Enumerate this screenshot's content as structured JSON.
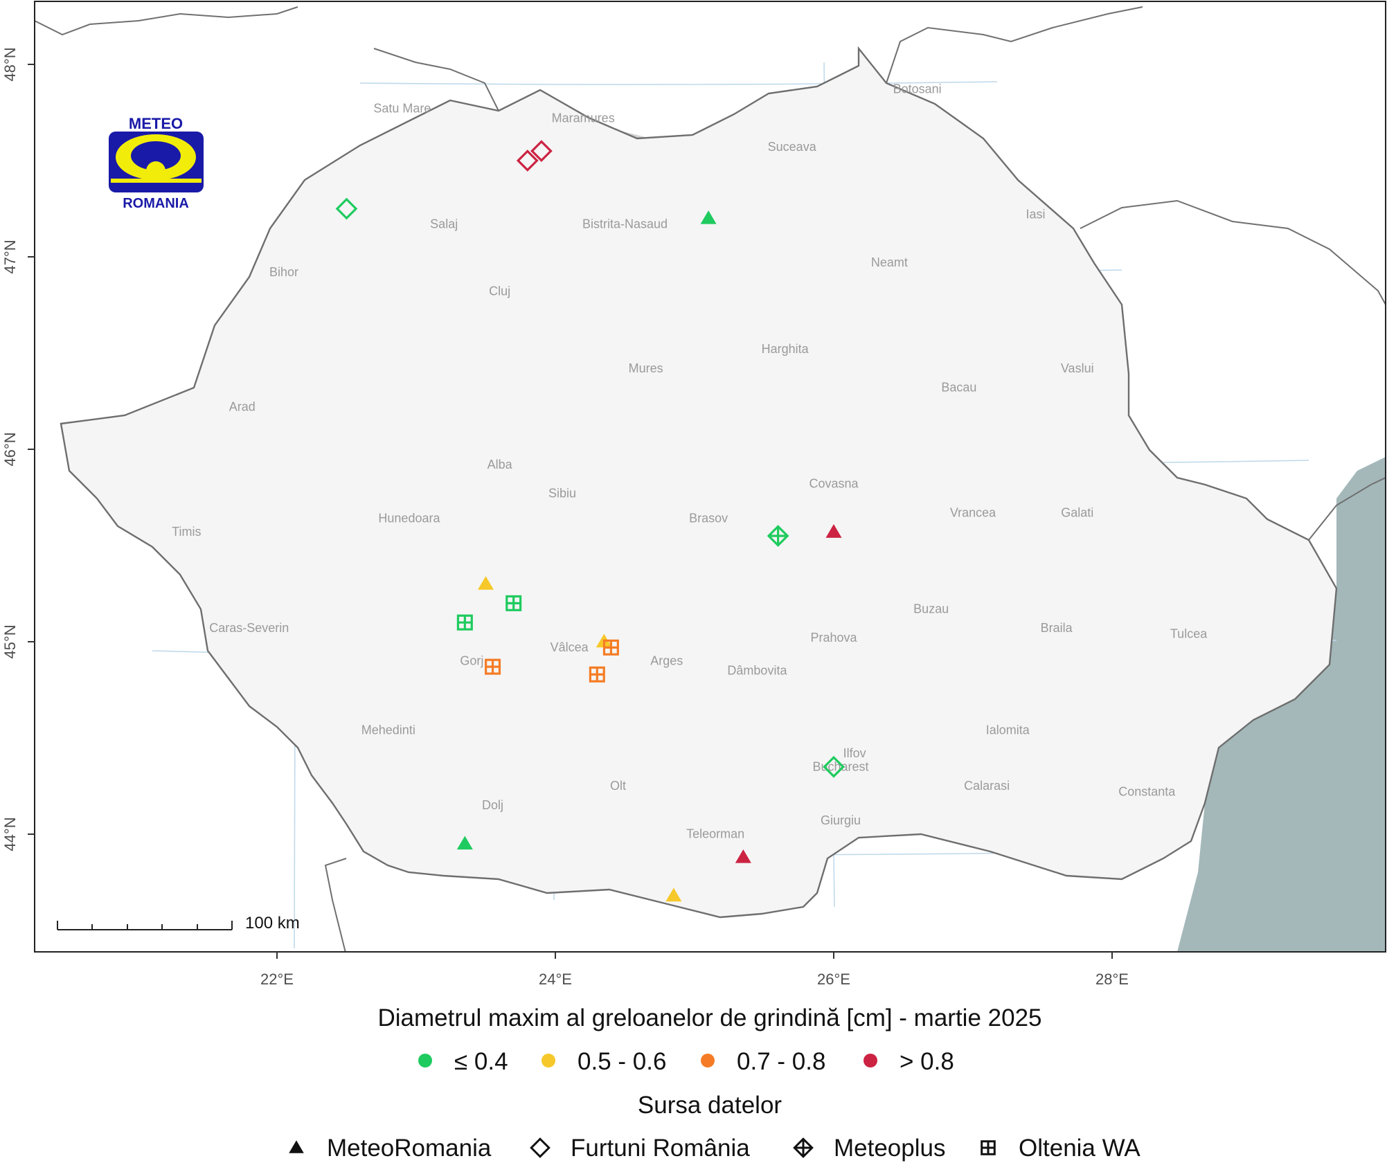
{
  "map": {
    "axes": {
      "x_ticks": [
        "22°E",
        "24°E",
        "26°E",
        "28°E"
      ],
      "y_ticks": [
        "44°N",
        "45°N",
        "46°N",
        "47°N",
        "48°N"
      ]
    },
    "colors": {
      "land": "#f5f5f5",
      "relief": "#d2d2d2",
      "sea": "#a4b8ba",
      "border": "#707070",
      "graticule": "#bcd8ea"
    },
    "logo": {
      "top": "METEO",
      "bottom": "ROMANIA"
    },
    "scale_bar": {
      "label": "100 km"
    },
    "counties": [
      {
        "name": "Satu Mare",
        "lon": 22.9,
        "lat": 47.75
      },
      {
        "name": "Maramures",
        "lon": 24.2,
        "lat": 47.7
      },
      {
        "name": "Botosani",
        "lon": 26.6,
        "lat": 47.85
      },
      {
        "name": "Suceava",
        "lon": 25.7,
        "lat": 47.55
      },
      {
        "name": "Salaj",
        "lon": 23.2,
        "lat": 47.15
      },
      {
        "name": "Bistrita-Nasaud",
        "lon": 24.5,
        "lat": 47.15
      },
      {
        "name": "Iasi",
        "lon": 27.45,
        "lat": 47.2
      },
      {
        "name": "Bihor",
        "lon": 22.05,
        "lat": 46.9
      },
      {
        "name": "Neamt",
        "lon": 26.4,
        "lat": 46.95
      },
      {
        "name": "Cluj",
        "lon": 23.6,
        "lat": 46.8
      },
      {
        "name": "Harghita",
        "lon": 25.65,
        "lat": 46.5
      },
      {
        "name": "Mures",
        "lon": 24.65,
        "lat": 46.4
      },
      {
        "name": "Vaslui",
        "lon": 27.75,
        "lat": 46.4
      },
      {
        "name": "Bacau",
        "lon": 26.9,
        "lat": 46.3
      },
      {
        "name": "Arad",
        "lon": 21.75,
        "lat": 46.2
      },
      {
        "name": "Alba",
        "lon": 23.6,
        "lat": 45.9
      },
      {
        "name": "Covasna",
        "lon": 26.0,
        "lat": 45.8
      },
      {
        "name": "Sibiu",
        "lon": 24.05,
        "lat": 45.75
      },
      {
        "name": "Hunedoara",
        "lon": 22.95,
        "lat": 45.62
      },
      {
        "name": "Brasov",
        "lon": 25.1,
        "lat": 45.62
      },
      {
        "name": "Vrancea",
        "lon": 27.0,
        "lat": 45.65
      },
      {
        "name": "Galati",
        "lon": 27.75,
        "lat": 45.65
      },
      {
        "name": "Timis",
        "lon": 21.35,
        "lat": 45.55
      },
      {
        "name": "Buzau",
        "lon": 26.7,
        "lat": 45.15
      },
      {
        "name": "Caras-Severin",
        "lon": 21.8,
        "lat": 45.05
      },
      {
        "name": "Braila",
        "lon": 27.6,
        "lat": 45.05
      },
      {
        "name": "Tulcea",
        "lon": 28.55,
        "lat": 45.02
      },
      {
        "name": "Prahova",
        "lon": 26.0,
        "lat": 45.0
      },
      {
        "name": "Vâlcea",
        "lon": 24.1,
        "lat": 44.95
      },
      {
        "name": "Arges",
        "lon": 24.8,
        "lat": 44.88
      },
      {
        "name": "Gorj",
        "lon": 23.4,
        "lat": 44.88
      },
      {
        "name": "Dâmbovita",
        "lon": 25.45,
        "lat": 44.83
      },
      {
        "name": "Mehedinti",
        "lon": 22.8,
        "lat": 44.52
      },
      {
        "name": "Ialomita",
        "lon": 27.25,
        "lat": 44.52
      },
      {
        "name": "Ilfov",
        "lon": 26.15,
        "lat": 44.4
      },
      {
        "name": "Bucharest",
        "lon": 26.05,
        "lat": 44.33
      },
      {
        "name": "Olt",
        "lon": 24.45,
        "lat": 44.23
      },
      {
        "name": "Calarasi",
        "lon": 27.1,
        "lat": 44.23
      },
      {
        "name": "Constanta",
        "lon": 28.25,
        "lat": 44.2
      },
      {
        "name": "Dolj",
        "lon": 23.55,
        "lat": 44.13
      },
      {
        "name": "Teleorman",
        "lon": 25.15,
        "lat": 43.98
      },
      {
        "name": "Giurgiu",
        "lon": 26.05,
        "lat": 44.05
      }
    ],
    "observations": [
      {
        "lon": 23.8,
        "lat": 47.5,
        "class": "> 0.8",
        "source": "Furtuni România"
      },
      {
        "lon": 23.9,
        "lat": 47.55,
        "class": "> 0.8",
        "source": "Furtuni România"
      },
      {
        "lon": 22.5,
        "lat": 47.25,
        "class": "≤ 0.4",
        "source": "Furtuni România"
      },
      {
        "lon": 25.1,
        "lat": 47.2,
        "class": "≤ 0.4",
        "source": "MeteoRomania"
      },
      {
        "lon": 25.6,
        "lat": 45.55,
        "class": "≤ 0.4",
        "source": "Meteoplus"
      },
      {
        "lon": 26.0,
        "lat": 45.57,
        "class": "> 0.8",
        "source": "MeteoRomania"
      },
      {
        "lon": 23.5,
        "lat": 45.3,
        "class": "0.5 - 0.6",
        "source": "MeteoRomania"
      },
      {
        "lon": 23.7,
        "lat": 45.2,
        "class": "≤ 0.4",
        "source": "Oltenia WA"
      },
      {
        "lon": 23.35,
        "lat": 45.1,
        "class": "≤ 0.4",
        "source": "Oltenia WA"
      },
      {
        "lon": 24.35,
        "lat": 45.0,
        "class": "0.5 - 0.6",
        "source": "MeteoRomania"
      },
      {
        "lon": 24.4,
        "lat": 44.97,
        "class": "0.7 - 0.8",
        "source": "Oltenia WA"
      },
      {
        "lon": 23.55,
        "lat": 44.87,
        "class": "0.7 - 0.8",
        "source": "Oltenia WA"
      },
      {
        "lon": 24.3,
        "lat": 44.83,
        "class": "0.7 - 0.8",
        "source": "Oltenia WA"
      },
      {
        "lon": 26.0,
        "lat": 44.35,
        "class": "≤ 0.4",
        "source": "Furtuni România"
      },
      {
        "lon": 23.35,
        "lat": 43.95,
        "class": "≤ 0.4",
        "source": "MeteoRomania"
      },
      {
        "lon": 25.35,
        "lat": 43.88,
        "class": "> 0.8",
        "source": "MeteoRomania"
      },
      {
        "lon": 24.85,
        "lat": 43.68,
        "class": "0.5 - 0.6",
        "source": "MeteoRomania"
      }
    ]
  },
  "legend": {
    "size_title": "Diametrul maxim al greloanelor de grindină [cm] - martie 2025",
    "size_classes": [
      {
        "label": "≤ 0.4",
        "color": "#1fcb5f"
      },
      {
        "label": "0.5 - 0.6",
        "color": "#f6c829"
      },
      {
        "label": "0.7 - 0.8",
        "color": "#f57c25"
      },
      {
        "label": "> 0.8",
        "color": "#cc2343"
      }
    ],
    "source_title": "Sursa datelor",
    "sources": [
      {
        "label": "MeteoRomania",
        "shape": "triangle"
      },
      {
        "label": "Furtuni România",
        "shape": "diamond"
      },
      {
        "label": "Meteoplus",
        "shape": "diamond-plus"
      },
      {
        "label": "Oltenia WA",
        "shape": "square-plus"
      }
    ]
  }
}
